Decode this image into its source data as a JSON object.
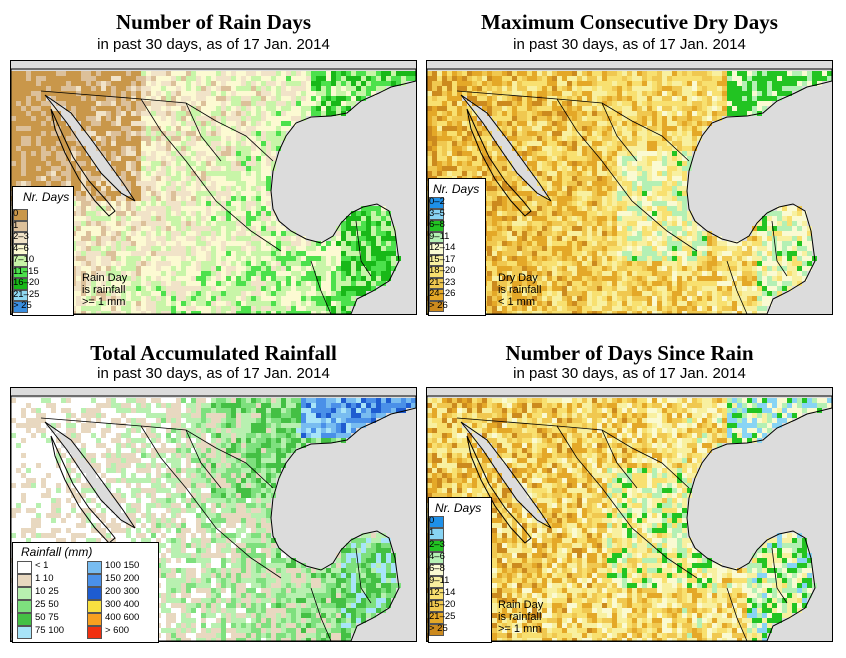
{
  "panels": [
    {
      "title": "Number of Rain Days",
      "subtitle": "in past 30 days, as of  17 Jan. 2014",
      "legend_title": "Nr. Days",
      "legend": [
        {
          "label": "0",
          "color": "#c9974a"
        },
        {
          "label": "1",
          "color": "#dcc09a"
        },
        {
          "label": "2–3",
          "color": "#f1e3c8"
        },
        {
          "label": "4–6",
          "color": "#fcfad2"
        },
        {
          "label": "7–10",
          "color": "#c8f5a8"
        },
        {
          "label": "11–15",
          "color": "#4ce14c"
        },
        {
          "label": "16–20",
          "color": "#18b818"
        },
        {
          "label": "21–25",
          "color": "#90d8f0"
        },
        {
          "label": "> 25",
          "color": "#3a8ee0"
        }
      ],
      "note": [
        "Rain Day",
        "is rainfall",
        ">= 1 mm"
      ]
    },
    {
      "title": "Maximum Consecutive Dry Days",
      "subtitle": "in past 30 days, as of  17 Jan. 2014",
      "legend_title": "Nr. Days",
      "legend": [
        {
          "label": "0–2",
          "color": "#1e90e8"
        },
        {
          "label": "3–5",
          "color": "#88d4f4"
        },
        {
          "label": "6–8",
          "color": "#22c422"
        },
        {
          "label": "9–11",
          "color": "#b4f0b4"
        },
        {
          "label": "12–14",
          "color": "#fafad2"
        },
        {
          "label": "15–17",
          "color": "#f8f0a0"
        },
        {
          "label": "18–20",
          "color": "#f8e070"
        },
        {
          "label": "21–23",
          "color": "#f0c850"
        },
        {
          "label": "24–26",
          "color": "#e4a828"
        },
        {
          "label": "> 26",
          "color": "#cc8a1e"
        }
      ],
      "note": [
        "Dry Day",
        "is rainfall",
        "< 1 mm"
      ]
    },
    {
      "title": "Total Accumulated Rainfall",
      "subtitle": "in past 30 days, as of  17 Jan. 2014",
      "legend_title": "Rainfall (mm)",
      "legend": [
        {
          "label": "< 1",
          "color": "#ffffff"
        },
        {
          "label": "1   10",
          "color": "#e8d8c0"
        },
        {
          "label": "10   25",
          "color": "#b8f0b0"
        },
        {
          "label": "25   50",
          "color": "#7ee07e"
        },
        {
          "label": "50   75",
          "color": "#44c044"
        },
        {
          "label": "75   100",
          "color": "#a8e4f8"
        },
        {
          "label": "100   150",
          "color": "#78bcf0"
        },
        {
          "label": "150   200",
          "color": "#4a90e8"
        },
        {
          "label": "200   300",
          "color": "#1e5cd0"
        },
        {
          "label": "300   400",
          "color": "#f8e040"
        },
        {
          "label": "400   600",
          "color": "#f8a020"
        },
        {
          "label": "> 600",
          "color": "#f03010"
        }
      ],
      "note": []
    },
    {
      "title": "Number of Days Since Rain",
      "subtitle": "in past 30 days, as of  17 Jan. 2014",
      "legend_title": "Nr. Days",
      "legend": [
        {
          "label": "0",
          "color": "#1e90e8"
        },
        {
          "label": "1",
          "color": "#88d4f4"
        },
        {
          "label": "2–3",
          "color": "#22c422"
        },
        {
          "label": "4–6",
          "color": "#b4f0b4"
        },
        {
          "label": "6–8",
          "color": "#fafad2"
        },
        {
          "label": "9–11",
          "color": "#f8f0a0"
        },
        {
          "label": "12–14",
          "color": "#f8e070"
        },
        {
          "label": "15–20",
          "color": "#f0c850"
        },
        {
          "label": "21–25",
          "color": "#e4a828"
        },
        {
          "label": "> 25",
          "color": "#cc8a1e"
        }
      ],
      "note": [
        "Rain Day",
        "is rainfall",
        ">= 1 mm"
      ]
    }
  ]
}
